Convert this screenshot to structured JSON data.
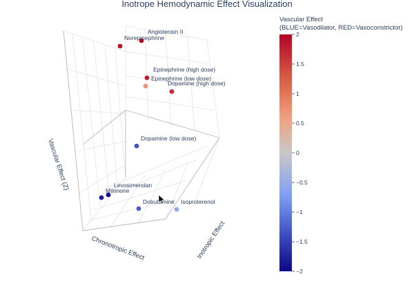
{
  "chart_data": {
    "type": "scatter3d",
    "title": "Inotrope Hemodynamic Effect Visualization",
    "axes": {
      "x_label": "Inotropic Effect",
      "y_label": "Chronotropic Effect",
      "z_label": "Vascular Effect (Z)",
      "show_tick_labels": false,
      "grid": true
    },
    "colorbar": {
      "title_line1": "Vascular Effect",
      "title_line2": "(BLUE=Vasodilator, RED=Vasoconstrictor)",
      "range": [
        -2,
        2
      ],
      "ticks": [
        "2",
        "1.5",
        "1",
        "0.5",
        "0",
        "−0.5",
        "−1",
        "−1.5",
        "−2"
      ],
      "colorscale": [
        "#0d0887",
        "#3b4cc0",
        "#7f9ff5",
        "#c8c8c8",
        "#f1a07e",
        "#d65a43",
        "#b40426"
      ]
    },
    "points": [
      {
        "name": "Angiotensin II",
        "vascular": 2.0
      },
      {
        "name": "Norepinephrine",
        "vascular": 1.9
      },
      {
        "name": "Epinephrine (high dose)",
        "vascular": 1.8
      },
      {
        "name": "Epinephrine (low dose)",
        "vascular": 0.8
      },
      {
        "name": "Dopamine (high dose)",
        "vascular": 1.7
      },
      {
        "name": "Dopamine (low dose)",
        "vascular": -1.3
      },
      {
        "name": "Levosimendan",
        "vascular": -1.9
      },
      {
        "name": "Milrinone",
        "vascular": -1.8
      },
      {
        "name": "Dobutamine",
        "vascular": -1.2
      },
      {
        "name": "Isoproterenol",
        "vascular": -0.5
      }
    ]
  }
}
